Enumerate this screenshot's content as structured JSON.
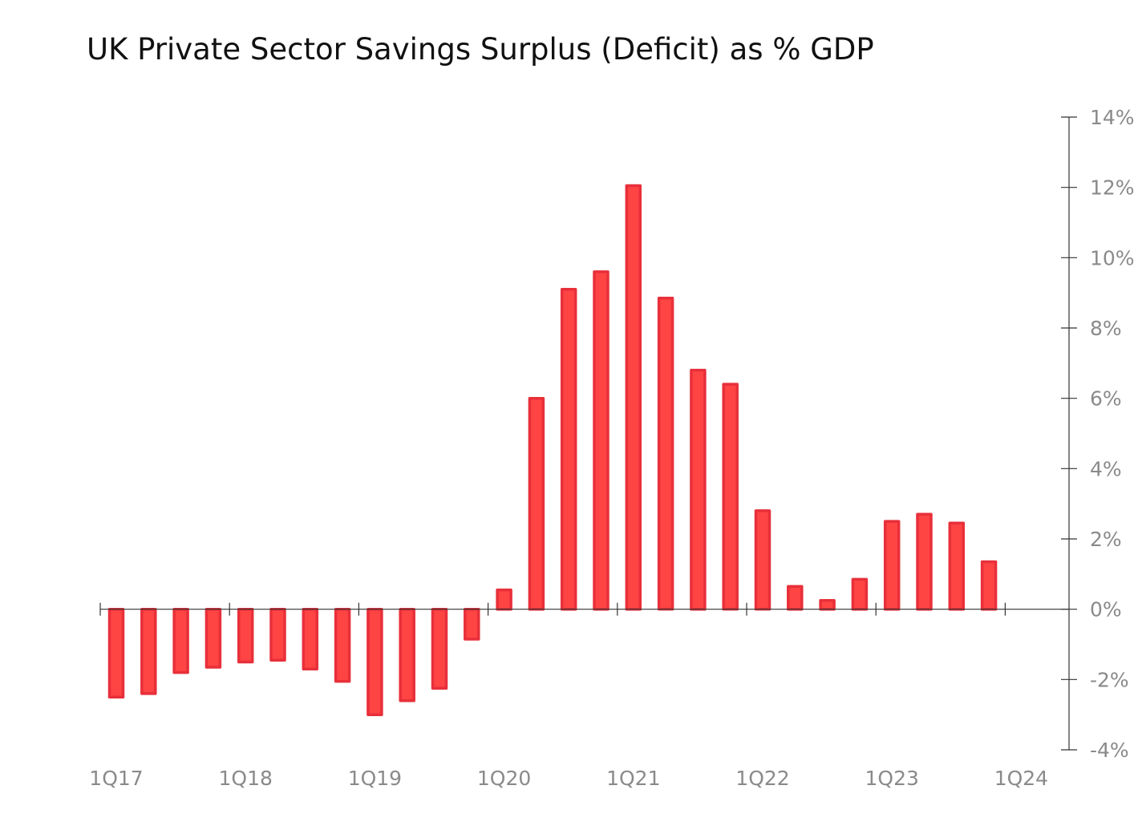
{
  "chart_data": {
    "type": "bar",
    "title": "UK Private Sector Savings Surplus (Deficit) as % GDP",
    "xlabel": "",
    "ylabel": "",
    "ylim": [
      -4,
      14
    ],
    "yticks": [
      {
        "value": 14,
        "label": "14%"
      },
      {
        "value": 12,
        "label": "12%"
      },
      {
        "value": 10,
        "label": "10%"
      },
      {
        "value": 8,
        "label": "8%"
      },
      {
        "value": 6,
        "label": "6%"
      },
      {
        "value": 4,
        "label": "4%"
      },
      {
        "value": 2,
        "label": "2%"
      },
      {
        "value": 0,
        "label": "0%"
      },
      {
        "value": -2,
        "label": "-2%"
      },
      {
        "value": -4,
        "label": "-4%"
      }
    ],
    "x_tick_labels": [
      "1Q17",
      "1Q18",
      "1Q19",
      "1Q20",
      "1Q21",
      "1Q22",
      "1Q23",
      "1Q24"
    ],
    "categories": [
      "1Q17",
      "2Q17",
      "3Q17",
      "4Q17",
      "1Q18",
      "2Q18",
      "3Q18",
      "4Q18",
      "1Q19",
      "2Q19",
      "3Q19",
      "4Q19",
      "1Q20",
      "2Q20",
      "3Q20",
      "4Q20",
      "1Q21",
      "2Q21",
      "3Q21",
      "4Q21",
      "1Q22",
      "2Q22",
      "3Q22",
      "4Q22",
      "1Q23",
      "2Q23",
      "3Q23",
      "4Q23"
    ],
    "values": [
      -2.5,
      -2.4,
      -1.8,
      -1.65,
      -1.5,
      -1.45,
      -1.7,
      -2.05,
      -3.0,
      -2.6,
      -2.25,
      -0.85,
      0.55,
      6.0,
      9.1,
      9.6,
      12.05,
      8.85,
      6.8,
      6.4,
      2.8,
      0.65,
      0.25,
      0.85,
      2.5,
      2.7,
      2.45,
      1.35
    ],
    "grid": false,
    "legend": "none",
    "bar_fill": "#ff4444",
    "bar_stroke": "#e8303a",
    "axis_color": "#333333",
    "tick_text_color": "#8a8a8a"
  }
}
